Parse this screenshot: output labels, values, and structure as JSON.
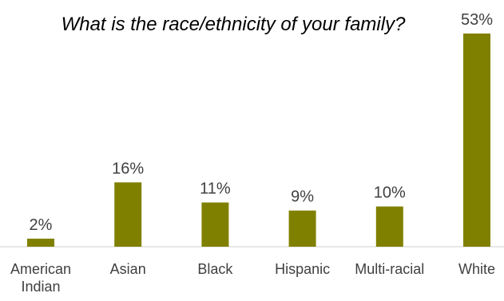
{
  "chart_data": {
    "type": "bar",
    "title": "What is the race/ethnicity of your family?",
    "categories": [
      "American Indian",
      "Asian",
      "Black",
      "Hispanic",
      "Multi-racial",
      "White"
    ],
    "values": [
      2,
      16,
      11,
      9,
      10,
      53
    ],
    "value_labels": [
      "2%",
      "16%",
      "11%",
      "9%",
      "10%",
      "53%"
    ],
    "unit": "%",
    "xlabel": "",
    "ylabel": "",
    "ylim": [
      0,
      53
    ],
    "grid": false,
    "legend": "none",
    "bar_color": "#808000",
    "baseline_color": "#d0d0d0"
  }
}
